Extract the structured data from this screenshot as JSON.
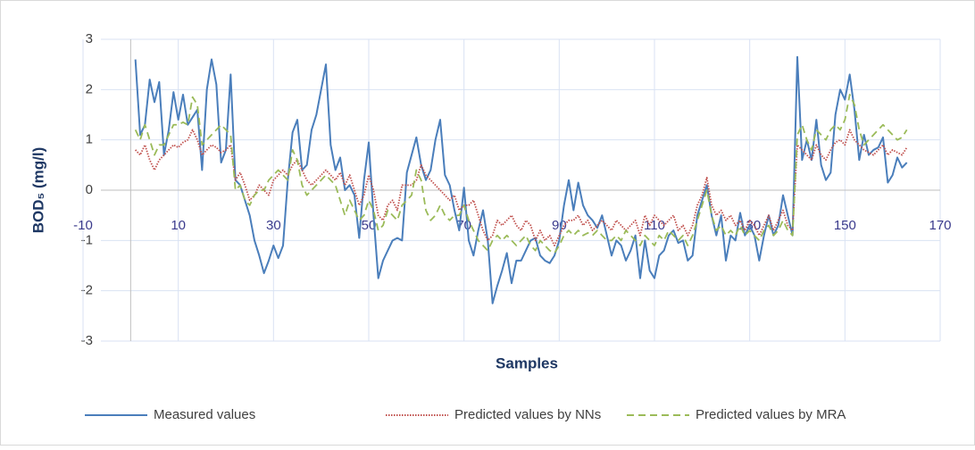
{
  "chart_data": {
    "type": "line",
    "x_label": "Samples",
    "y_label": "BOD₅ (mg/l)",
    "xlim": [
      -10,
      170
    ],
    "xticks": [
      -10,
      10,
      30,
      50,
      70,
      90,
      110,
      130,
      150,
      170
    ],
    "ylim": [
      -3,
      3
    ],
    "yticks": [
      -3,
      -2,
      -1,
      0,
      1,
      2,
      3
    ],
    "grid": true,
    "legend": "bottom",
    "x": [
      1,
      2,
      3,
      4,
      5,
      6,
      7,
      8,
      9,
      10,
      11,
      12,
      13,
      14,
      15,
      16,
      17,
      18,
      19,
      20,
      21,
      22,
      23,
      24,
      25,
      26,
      27,
      28,
      29,
      30,
      31,
      32,
      33,
      34,
      35,
      36,
      37,
      38,
      39,
      40,
      41,
      42,
      43,
      44,
      45,
      46,
      47,
      48,
      49,
      50,
      51,
      52,
      53,
      54,
      55,
      56,
      57,
      58,
      59,
      60,
      61,
      62,
      63,
      64,
      65,
      66,
      67,
      68,
      69,
      70,
      71,
      72,
      73,
      74,
      75,
      76,
      77,
      78,
      79,
      80,
      81,
      82,
      83,
      84,
      85,
      86,
      87,
      88,
      89,
      90,
      91,
      92,
      93,
      94,
      95,
      96,
      97,
      98,
      99,
      100,
      101,
      102,
      103,
      104,
      105,
      106,
      107,
      108,
      109,
      110,
      111,
      112,
      113,
      114,
      115,
      116,
      117,
      118,
      119,
      120,
      121,
      122,
      123,
      124,
      125,
      126,
      127,
      128,
      129,
      130,
      131,
      132,
      133,
      134,
      135,
      136,
      137,
      138,
      139,
      140,
      141,
      142,
      143,
      144,
      145,
      146,
      147,
      148,
      149,
      150,
      151,
      152,
      153,
      154,
      155,
      156,
      157,
      158,
      159,
      160,
      161,
      162,
      163
    ],
    "series": [
      {
        "name": "Measured values",
        "color": "#4a7ebb",
        "style": "solid",
        "values": [
          2.6,
          1.1,
          1.3,
          2.2,
          1.75,
          2.15,
          0.7,
          1.2,
          1.95,
          1.4,
          1.9,
          1.3,
          1.45,
          1.6,
          0.4,
          2.0,
          2.6,
          2.1,
          0.55,
          0.8,
          2.3,
          0.2,
          0.1,
          -0.2,
          -0.5,
          -1.0,
          -1.3,
          -1.65,
          -1.4,
          -1.1,
          -1.35,
          -1.1,
          0.2,
          1.15,
          1.4,
          0.4,
          0.5,
          1.2,
          1.5,
          2.0,
          2.5,
          0.9,
          0.4,
          0.65,
          0.0,
          0.1,
          -0.1,
          -0.95,
          0.2,
          0.95,
          -0.5,
          -1.75,
          -1.4,
          -1.2,
          -1.0,
          -0.95,
          -1.0,
          0.35,
          0.7,
          1.05,
          0.5,
          0.2,
          0.4,
          1.0,
          1.4,
          0.3,
          0.1,
          -0.4,
          -0.8,
          0.05,
          -1.0,
          -1.3,
          -0.8,
          -0.4,
          -1.0,
          -2.25,
          -1.9,
          -1.6,
          -1.25,
          -1.85,
          -1.4,
          -1.4,
          -1.2,
          -1.0,
          -0.95,
          -1.3,
          -1.4,
          -1.45,
          -1.3,
          -1.0,
          -0.3,
          0.2,
          -0.4,
          0.15,
          -0.3,
          -0.5,
          -0.6,
          -0.75,
          -0.5,
          -0.9,
          -1.3,
          -1.0,
          -1.1,
          -1.4,
          -1.2,
          -0.9,
          -1.75,
          -1.0,
          -1.6,
          -1.75,
          -1.3,
          -1.2,
          -0.9,
          -0.8,
          -1.05,
          -1.0,
          -1.4,
          -1.3,
          -0.5,
          -0.2,
          0.1,
          -0.5,
          -0.9,
          -0.5,
          -1.4,
          -0.9,
          -1.0,
          -0.45,
          -0.9,
          -0.7,
          -0.9,
          -1.4,
          -0.9,
          -0.5,
          -0.9,
          -0.7,
          -0.1,
          -0.5,
          -0.9,
          2.65,
          0.6,
          1.0,
          0.6,
          1.4,
          0.5,
          0.2,
          0.35,
          1.5,
          2.0,
          1.8,
          2.3,
          1.6,
          0.6,
          1.1,
          0.7,
          0.8,
          0.85,
          1.05,
          0.15,
          0.3,
          0.65,
          0.45,
          0.55
        ]
      },
      {
        "name": "Predicted values by NNs",
        "color": "#c0504d",
        "style": "dotted",
        "values": [
          0.8,
          0.7,
          0.9,
          0.6,
          0.4,
          0.6,
          0.7,
          0.8,
          0.9,
          0.85,
          0.95,
          1.0,
          1.2,
          1.0,
          0.7,
          0.8,
          0.9,
          0.85,
          0.75,
          0.8,
          0.9,
          0.2,
          0.35,
          0.1,
          -0.2,
          -0.1,
          0.1,
          0.0,
          -0.1,
          0.2,
          0.3,
          0.4,
          0.3,
          0.5,
          0.6,
          0.4,
          0.2,
          0.1,
          0.2,
          0.3,
          0.4,
          0.3,
          0.2,
          0.35,
          0.1,
          0.3,
          0.0,
          -0.3,
          -0.1,
          0.3,
          0.0,
          -0.5,
          -0.6,
          -0.3,
          -0.2,
          -0.4,
          0.1,
          0.1,
          0.1,
          0.2,
          0.5,
          0.3,
          0.2,
          0.1,
          0.0,
          -0.1,
          -0.2,
          -0.1,
          -0.4,
          -0.3,
          -0.3,
          -0.2,
          -0.5,
          -0.8,
          -1.0,
          -0.9,
          -0.6,
          -0.7,
          -0.6,
          -0.5,
          -0.7,
          -0.8,
          -0.6,
          -0.7,
          -1.0,
          -0.8,
          -1.0,
          -0.9,
          -1.1,
          -0.9,
          -0.7,
          -0.6,
          -0.6,
          -0.5,
          -0.7,
          -0.6,
          -0.8,
          -0.7,
          -0.6,
          -0.7,
          -0.8,
          -0.6,
          -0.7,
          -0.8,
          -0.7,
          -0.6,
          -0.9,
          -0.5,
          -0.7,
          -0.5,
          -0.6,
          -0.7,
          -0.6,
          -0.5,
          -0.8,
          -0.7,
          -0.9,
          -0.7,
          -0.3,
          -0.1,
          0.25,
          -0.3,
          -0.5,
          -0.4,
          -0.6,
          -0.5,
          -0.7,
          -0.6,
          -0.8,
          -0.6,
          -0.7,
          -0.9,
          -0.7,
          -0.5,
          -0.8,
          -0.6,
          -0.4,
          -0.7,
          -0.8,
          0.9,
          0.8,
          0.7,
          0.6,
          0.9,
          0.7,
          0.6,
          0.8,
          0.95,
          1.0,
          0.9,
          1.2,
          1.0,
          0.9,
          0.8,
          0.75,
          0.7,
          0.8,
          0.9,
          0.7,
          0.8,
          0.75,
          0.7,
          0.85
        ]
      },
      {
        "name": "Predicted values by MRA",
        "color": "#9bbb59",
        "style": "dashed",
        "values": [
          1.2,
          1.0,
          1.3,
          1.0,
          0.7,
          0.9,
          0.9,
          1.1,
          1.3,
          1.3,
          1.35,
          1.3,
          1.85,
          1.7,
          0.9,
          1.0,
          1.1,
          1.2,
          1.3,
          1.2,
          1.1,
          0.0,
          0.1,
          -0.2,
          -0.3,
          -0.1,
          0.0,
          0.0,
          0.2,
          0.3,
          0.4,
          0.3,
          0.2,
          0.8,
          0.6,
          0.1,
          -0.1,
          0.0,
          0.1,
          0.2,
          0.3,
          0.2,
          0.1,
          -0.2,
          -0.5,
          -0.2,
          -0.4,
          -0.6,
          -0.5,
          -0.2,
          -0.4,
          -0.8,
          -0.7,
          -0.4,
          -0.5,
          -0.6,
          -0.3,
          -0.2,
          -0.1,
          0.4,
          0.2,
          -0.4,
          -0.6,
          -0.5,
          -0.3,
          -0.5,
          -0.6,
          -0.5,
          -0.5,
          -0.3,
          -0.6,
          -0.8,
          -1.0,
          -1.1,
          -1.2,
          -1.0,
          -0.9,
          -1.0,
          -0.9,
          -1.0,
          -1.1,
          -1.0,
          -0.9,
          -1.1,
          -1.2,
          -1.0,
          -1.1,
          -1.2,
          -1.25,
          -1.1,
          -0.9,
          -0.8,
          -0.9,
          -0.8,
          -0.9,
          -0.85,
          -0.9,
          -0.8,
          -0.9,
          -1.0,
          -1.0,
          -0.9,
          -1.0,
          -0.8,
          -0.9,
          -1.0,
          -1.1,
          -0.9,
          -1.0,
          -1.1,
          -0.9,
          -1.0,
          -0.8,
          -0.9,
          -1.0,
          -0.9,
          -1.1,
          -0.9,
          -0.6,
          -0.3,
          0.0,
          -0.5,
          -0.8,
          -0.7,
          -0.9,
          -0.8,
          -0.9,
          -0.7,
          -0.9,
          -0.8,
          -0.9,
          -1.0,
          -0.8,
          -0.7,
          -0.9,
          -0.8,
          -0.6,
          -0.8,
          -0.9,
          1.1,
          1.3,
          1.0,
          0.8,
          1.2,
          1.1,
          1.0,
          1.2,
          1.3,
          1.2,
          1.4,
          1.9,
          1.7,
          1.2,
          0.9,
          1.0,
          1.1,
          1.2,
          1.3,
          1.2,
          1.1,
          1.0,
          1.05,
          1.2
        ]
      }
    ]
  }
}
